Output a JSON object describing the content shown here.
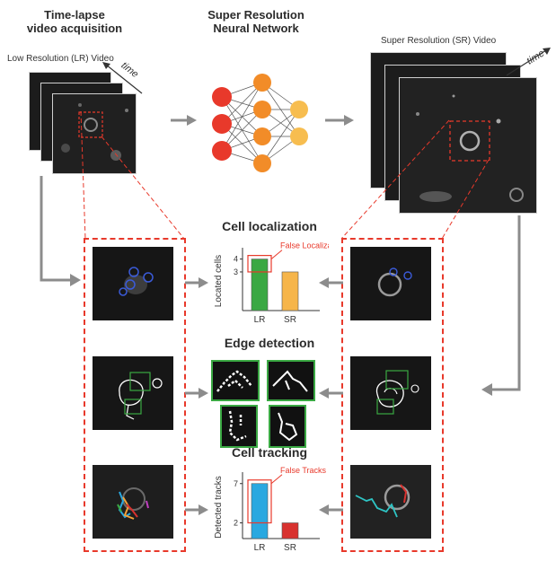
{
  "top": {
    "acq_title": "Time-lapse\nvideo acquisition",
    "lr_label": "Low Resolution (LR) Video",
    "time_label_left": "time",
    "nn_title": "Super Resolution\nNeural Network",
    "sr_label": "Super Resolution (SR) Video",
    "time_label_right": "time"
  },
  "sections": {
    "localization": "Cell localization",
    "edge": "Edge detection",
    "tracking": "Cell tracking"
  },
  "colors": {
    "dashed": "#e8392b",
    "lr_bar_localization": "#3aa843",
    "sr_bar_localization": "#f6b54a",
    "lr_bar_tracking": "#29a8e0",
    "sr_bar_tracking": "#d8322f",
    "nn_layer1": "#e8392b",
    "nn_layer2": "#f28c28",
    "nn_layer3": "#f7bd4f",
    "arrow": "#8c8c8c"
  },
  "chart_data": [
    {
      "type": "bar",
      "title": "Cell localization",
      "categories": [
        "LR",
        "SR"
      ],
      "values": [
        4,
        3
      ],
      "ylabel": "Located cells",
      "ylim": [
        0,
        4.6
      ],
      "yticks": [
        "3",
        "4"
      ],
      "annotation": "False Localizations"
    },
    {
      "type": "bar",
      "title": "Cell tracking",
      "categories": [
        "LR",
        "SR"
      ],
      "values": [
        7,
        2
      ],
      "ylabel": "Detected tracks",
      "ylim": [
        0,
        8
      ],
      "yticks": [
        "2",
        "7"
      ],
      "annotation": "False Tracks"
    }
  ]
}
